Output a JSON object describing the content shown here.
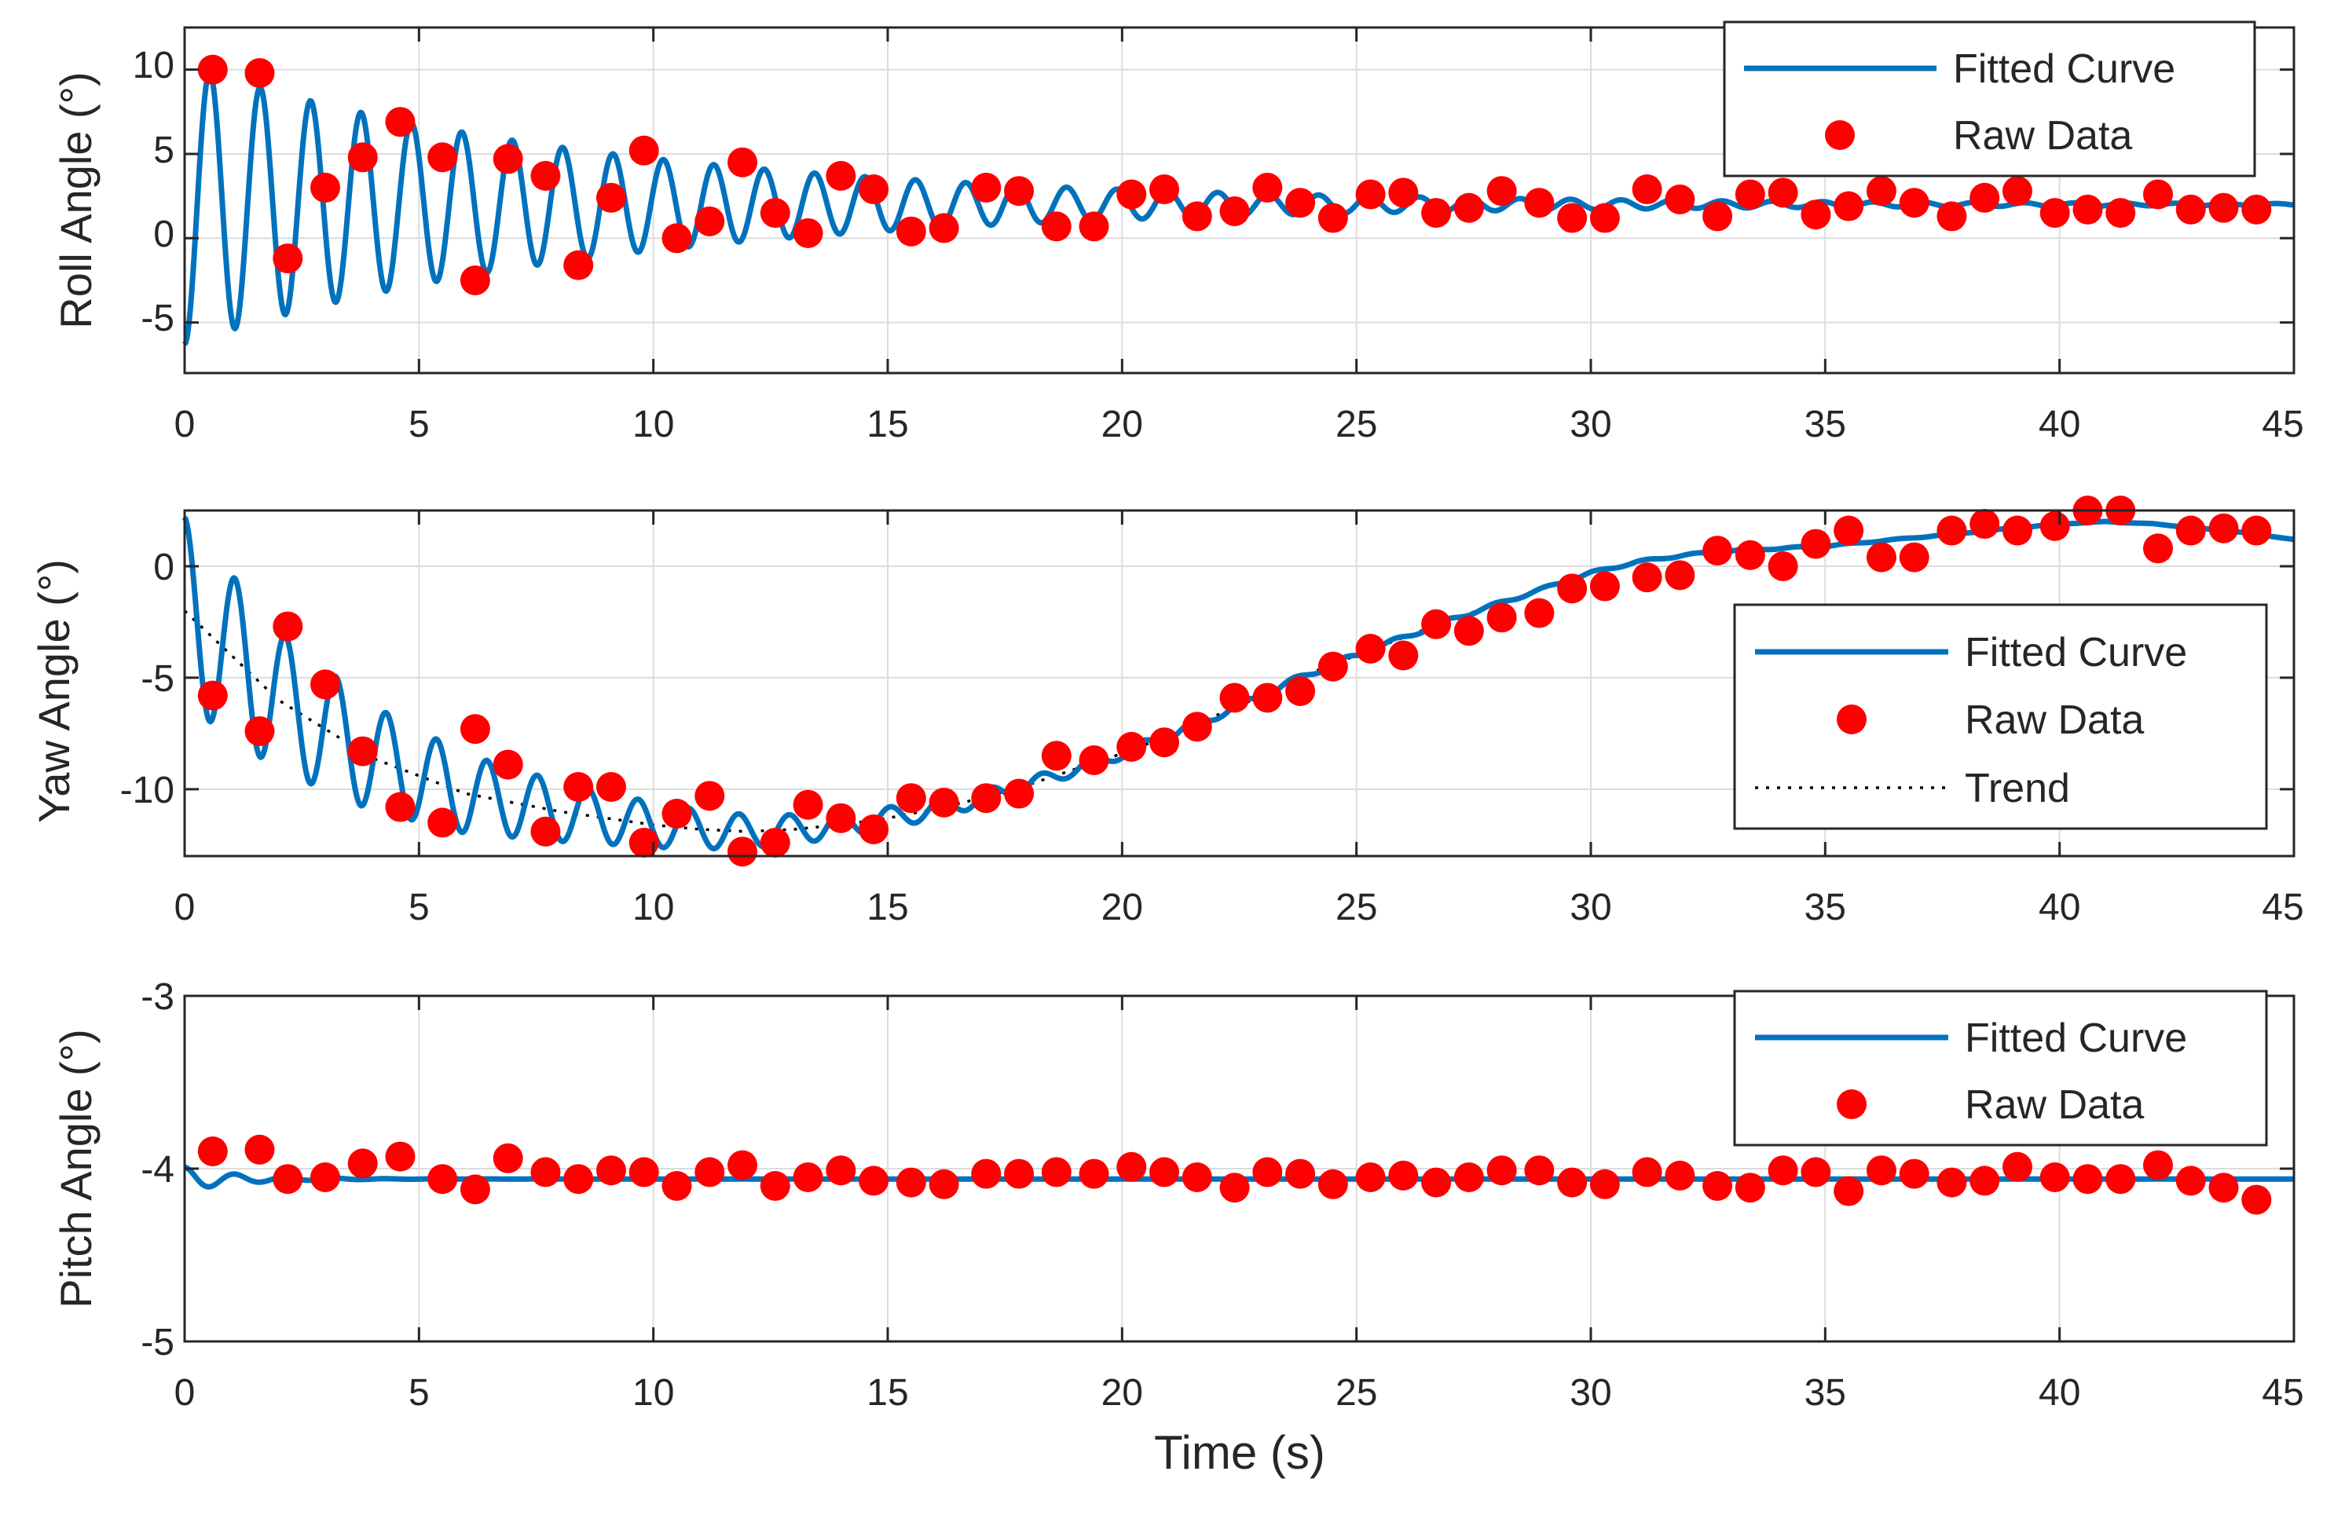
{
  "colors": {
    "fit": "#0072BD",
    "raw": "#FF0000",
    "trend": "#000000",
    "grid": "#DCDCDC",
    "axis": "#262626"
  },
  "chart_data": [
    {
      "type": "line",
      "id": "roll",
      "ylabel": "Roll Angle (°)",
      "xlabel": "",
      "xlim": [
        0,
        45
      ],
      "ylim": [
        -8,
        12.5
      ],
      "xticks": [
        "0",
        "5",
        "10",
        "15",
        "20",
        "25",
        "30",
        "35",
        "40",
        "45"
      ],
      "yticks": [
        "10",
        "5",
        "0",
        "-5"
      ],
      "ytick_values": [
        10,
        5,
        0,
        -5
      ],
      "legend": {
        "position": "top-right",
        "entries": [
          "Fitted Curve",
          "Raw Data"
        ]
      },
      "fit_model": {
        "kind": "damped_sine",
        "offset": 2.0,
        "amp0": -8.3,
        "tau": 9.0,
        "freq_hz": 0.93,
        "start": 0,
        "end": 45
      },
      "series": [
        {
          "name": "Raw Data",
          "style": "marker",
          "x": [
            0.6,
            1.6,
            2.2,
            3.0,
            3.8,
            4.6,
            5.5,
            6.2,
            6.9,
            7.7,
            8.4,
            9.1,
            9.8,
            10.5,
            11.2,
            11.9,
            12.6,
            13.3,
            14.0,
            14.7,
            15.5,
            16.2,
            17.1,
            17.8,
            18.6,
            19.4,
            20.2,
            20.9,
            21.6,
            22.4,
            23.1,
            23.8,
            24.5,
            25.3,
            26.0,
            26.7,
            27.4,
            28.1,
            28.9,
            29.6,
            30.3,
            31.2,
            31.9,
            32.7,
            33.4,
            34.1,
            34.8,
            35.5,
            36.2,
            36.9,
            37.7,
            38.4,
            39.1,
            39.9,
            40.6,
            41.3,
            42.1,
            42.8,
            43.5,
            44.2
          ],
          "y": [
            10.0,
            9.8,
            -1.2,
            3.0,
            4.8,
            6.9,
            4.8,
            -2.5,
            4.7,
            3.7,
            -1.6,
            2.4,
            5.2,
            0.0,
            1.0,
            4.5,
            1.5,
            0.3,
            3.7,
            2.9,
            0.4,
            0.6,
            3.0,
            2.8,
            0.7,
            0.7,
            2.6,
            2.9,
            1.3,
            1.6,
            3.0,
            2.1,
            1.2,
            2.6,
            2.7,
            1.5,
            1.8,
            2.8,
            2.1,
            1.2,
            1.2,
            2.9,
            2.3,
            1.3,
            2.6,
            2.7,
            1.4,
            1.9,
            2.8,
            2.1,
            1.3,
            2.4,
            2.8,
            1.5,
            1.7,
            1.5,
            2.6,
            1.7,
            1.8,
            1.7
          ]
        },
        {
          "name": "Fitted Curve",
          "style": "line"
        }
      ]
    },
    {
      "type": "line",
      "id": "yaw",
      "ylabel": "Yaw Angle (°)",
      "xlabel": "",
      "xlim": [
        0,
        45
      ],
      "ylim": [
        -13,
        2.5
      ],
      "xticks": [
        "0",
        "5",
        "10",
        "15",
        "20",
        "25",
        "30",
        "35",
        "40",
        "45"
      ],
      "yticks": [
        "0",
        "-5",
        "-10"
      ],
      "ytick_values": [
        0,
        -5,
        -10
      ],
      "legend": {
        "position": "middle-right",
        "entries": [
          "Fitted Curve",
          "Raw Data",
          "Trend"
        ]
      },
      "trend_points": {
        "x": [
          0,
          2,
          4,
          6,
          8,
          10,
          11,
          12,
          13,
          14,
          15,
          16,
          17,
          18,
          19,
          20,
          21,
          22,
          23,
          24,
          25,
          26,
          27,
          28,
          29,
          30,
          31,
          32,
          33,
          34,
          35,
          36,
          37,
          38,
          39,
          40,
          41,
          42,
          43,
          44,
          45
        ],
        "y": [
          -2.0,
          -6.0,
          -8.6,
          -10.2,
          -11.0,
          -11.6,
          -11.8,
          -11.9,
          -11.8,
          -11.6,
          -11.3,
          -10.9,
          -10.4,
          -9.8,
          -9.1,
          -8.4,
          -7.6,
          -6.7,
          -5.8,
          -4.8,
          -4.0,
          -3.2,
          -2.4,
          -1.7,
          -1.0,
          -0.3,
          0.2,
          0.5,
          0.7,
          0.8,
          0.9,
          1.1,
          1.3,
          1.5,
          1.7,
          1.9,
          2.0,
          1.9,
          1.7,
          1.5,
          1.2
        ]
      },
      "fit_model": {
        "kind": "trend_plus_damped_sine",
        "amp0": 4.2,
        "tau": 7.0,
        "freq_hz": 0.93,
        "start": 0,
        "end": 45
      },
      "series": [
        {
          "name": "Raw Data",
          "style": "marker",
          "x": [
            0.6,
            1.6,
            2.2,
            3.0,
            3.8,
            4.6,
            5.5,
            6.2,
            6.9,
            7.7,
            8.4,
            9.1,
            9.8,
            10.5,
            11.2,
            11.9,
            12.6,
            13.3,
            14.0,
            14.7,
            15.5,
            16.2,
            17.1,
            17.8,
            18.6,
            19.4,
            20.2,
            20.9,
            21.6,
            22.4,
            23.1,
            23.8,
            24.5,
            25.3,
            26.0,
            26.7,
            27.4,
            28.1,
            28.9,
            29.6,
            30.3,
            31.2,
            31.9,
            32.7,
            33.4,
            34.1,
            34.8,
            35.5,
            36.2,
            36.9,
            37.7,
            38.4,
            39.1,
            39.9,
            40.6,
            41.3,
            42.1,
            42.8,
            43.5,
            44.2
          ],
          "y": [
            -5.8,
            -7.4,
            -2.7,
            -5.3,
            -8.3,
            -10.8,
            -11.5,
            -7.3,
            -8.9,
            -11.9,
            -9.9,
            -9.9,
            -12.4,
            -11.1,
            -10.3,
            -12.8,
            -12.4,
            -10.7,
            -11.3,
            -11.8,
            -10.4,
            -10.6,
            -10.4,
            -10.2,
            -8.5,
            -8.7,
            -8.1,
            -7.9,
            -7.2,
            -5.9,
            -5.9,
            -5.6,
            -4.5,
            -3.7,
            -4.0,
            -2.6,
            -2.9,
            -2.3,
            -2.1,
            -1.0,
            -0.9,
            -0.5,
            -0.4,
            0.7,
            0.5,
            0.0,
            1.0,
            1.6,
            0.4,
            0.4,
            1.6,
            1.9,
            1.6,
            1.8,
            2.5,
            2.5,
            0.8,
            1.6,
            1.7,
            1.6
          ]
        },
        {
          "name": "Fitted Curve",
          "style": "line"
        },
        {
          "name": "Trend",
          "style": "dotted"
        }
      ]
    },
    {
      "type": "line",
      "id": "pitch",
      "ylabel": "Pitch Angle (°)",
      "xlabel": "Time (s)",
      "xlim": [
        0,
        45
      ],
      "ylim": [
        -5,
        -3
      ],
      "xticks": [
        "0",
        "5",
        "10",
        "15",
        "20",
        "25",
        "30",
        "35",
        "40",
        "45"
      ],
      "yticks": [
        "-3",
        "-4",
        "-5"
      ],
      "ytick_values": [
        -3,
        -4,
        -5
      ],
      "legend": {
        "position": "top-right",
        "entries": [
          "Fitted Curve",
          "Raw Data"
        ]
      },
      "fit_model": {
        "kind": "damped_sine",
        "offset": -4.06,
        "amp0": 0.07,
        "tau": 1.2,
        "freq_hz": 0.93,
        "start": 0,
        "end": 45
      },
      "series": [
        {
          "name": "Raw Data",
          "style": "marker",
          "x": [
            0.6,
            1.6,
            2.2,
            3.0,
            3.8,
            4.6,
            5.5,
            6.2,
            6.9,
            7.7,
            8.4,
            9.1,
            9.8,
            10.5,
            11.2,
            11.9,
            12.6,
            13.3,
            14.0,
            14.7,
            15.5,
            16.2,
            17.1,
            17.8,
            18.6,
            19.4,
            20.2,
            20.9,
            21.6,
            22.4,
            23.1,
            23.8,
            24.5,
            25.3,
            26.0,
            26.7,
            27.4,
            28.1,
            28.9,
            29.6,
            30.3,
            31.2,
            31.9,
            32.7,
            33.4,
            34.1,
            34.8,
            35.5,
            36.2,
            36.9,
            37.7,
            38.4,
            39.1,
            39.9,
            40.6,
            41.3,
            42.1,
            42.8,
            43.5,
            44.2
          ],
          "y": [
            -3.9,
            -3.89,
            -4.06,
            -4.05,
            -3.97,
            -3.93,
            -4.06,
            -4.12,
            -3.94,
            -4.02,
            -4.06,
            -4.01,
            -4.02,
            -4.1,
            -4.02,
            -3.98,
            -4.1,
            -4.05,
            -4.01,
            -4.07,
            -4.08,
            -4.09,
            -4.03,
            -4.03,
            -4.02,
            -4.03,
            -3.99,
            -4.02,
            -4.05,
            -4.11,
            -4.02,
            -4.03,
            -4.09,
            -4.05,
            -4.04,
            -4.08,
            -4.05,
            -4.01,
            -4.01,
            -4.08,
            -4.09,
            -4.02,
            -4.04,
            -4.1,
            -4.11,
            -4.01,
            -4.02,
            -4.13,
            -4.01,
            -4.03,
            -4.08,
            -4.07,
            -3.99,
            -4.05,
            -4.06,
            -4.06,
            -3.98,
            -4.07,
            -4.11,
            -4.18
          ]
        },
        {
          "name": "Fitted Curve",
          "style": "line"
        }
      ]
    }
  ]
}
